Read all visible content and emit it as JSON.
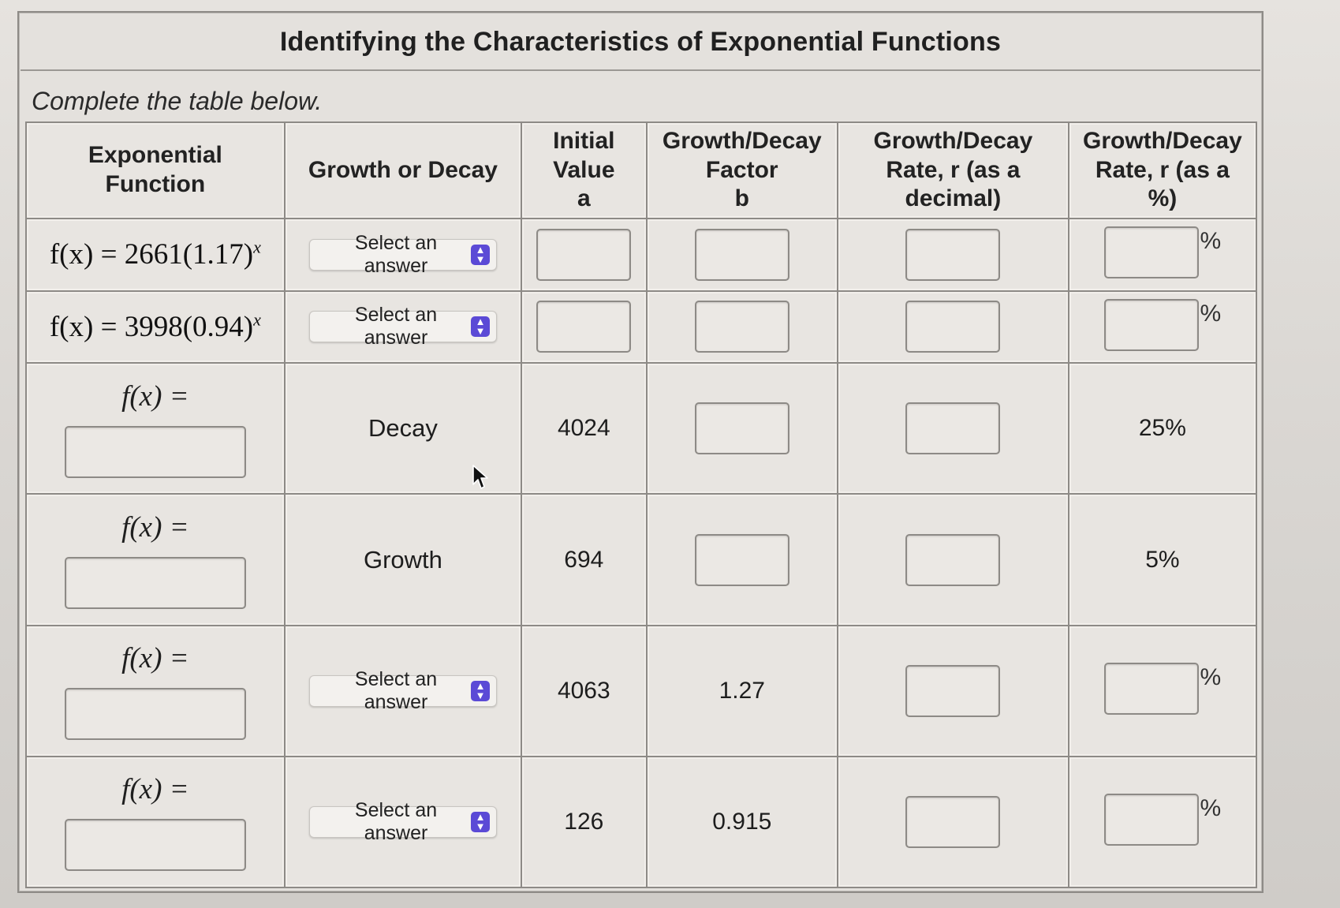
{
  "title": "Identifying the Characteristics of Exponential Functions",
  "instructions": "Complete the table below.",
  "headers": {
    "function": [
      "Exponential",
      "Function"
    ],
    "growth_or_decay": [
      "Growth or Decay"
    ],
    "initial_value": [
      "Initial",
      "Value",
      "a"
    ],
    "factor": [
      "Growth/Decay",
      "Factor",
      "b"
    ],
    "rate_decimal": [
      "Growth/Decay",
      "Rate, r (as a",
      "decimal)"
    ],
    "rate_percent": [
      "Growth/Decay",
      "Rate, r (as a",
      "%)"
    ]
  },
  "select_placeholder": "Select an answer",
  "fx_prefix": "f(x) =",
  "percent_sign": "%",
  "rows": [
    {
      "function": {
        "lhs": "f(x) = 2661(1.17)",
        "exp": "x"
      },
      "growth_or_decay": null,
      "initial_value": null,
      "factor": null,
      "rate_decimal": null,
      "rate_percent": null
    },
    {
      "function": {
        "lhs": "f(x) = 3998(0.94)",
        "exp": "x"
      },
      "growth_or_decay": null,
      "initial_value": null,
      "factor": null,
      "rate_decimal": null,
      "rate_percent": null
    },
    {
      "function": null,
      "growth_or_decay": "Decay",
      "initial_value": "4024",
      "factor": null,
      "rate_decimal": null,
      "rate_percent": "25%"
    },
    {
      "function": null,
      "growth_or_decay": "Growth",
      "initial_value": "694",
      "factor": null,
      "rate_decimal": null,
      "rate_percent": "5%"
    },
    {
      "function": null,
      "growth_or_decay": null,
      "initial_value": "4063",
      "factor": "1.27",
      "rate_decimal": null,
      "rate_percent": null
    },
    {
      "function": null,
      "growth_or_decay": null,
      "initial_value": "126",
      "factor": "0.915",
      "rate_decimal": null,
      "rate_percent": null
    }
  ],
  "colors": {
    "select_accent": "#5b4ad6",
    "border": "#8d8a86",
    "cell_bg": "#e8e5e1"
  },
  "icons": {
    "select_arrows": "updown-chevron-icon",
    "cursor": "mouse-pointer-icon"
  }
}
